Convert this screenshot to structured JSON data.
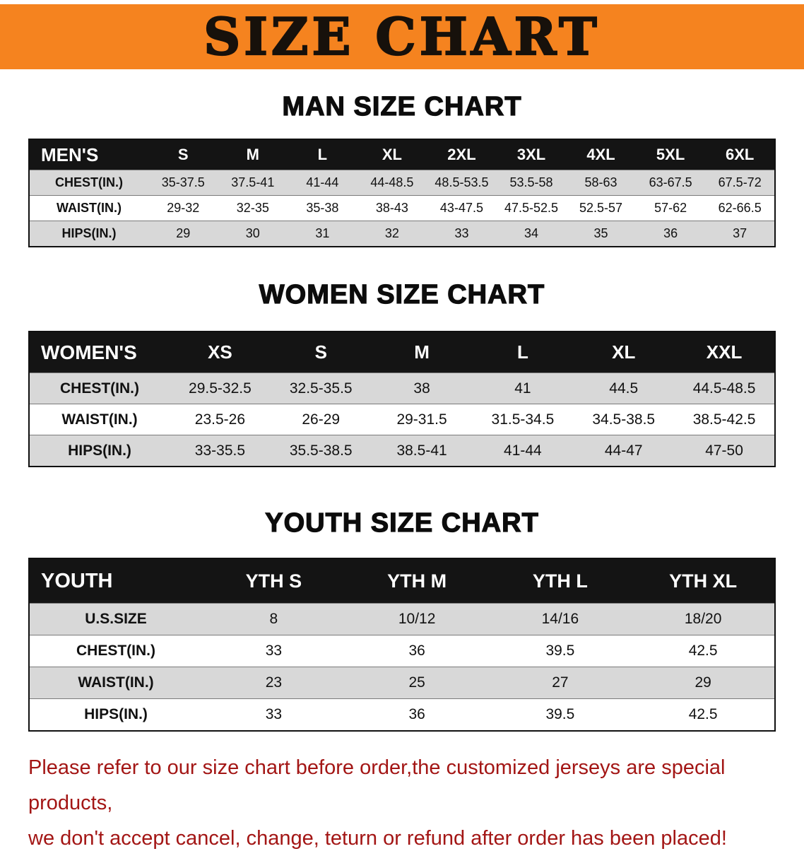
{
  "banner": {
    "title": "SIZE CHART",
    "bg_color": "#F5831F",
    "text_color": "#17110B"
  },
  "sections": [
    {
      "heading": "MAN SIZE CHART",
      "table": {
        "header": [
          "MEN'S",
          "S",
          "M",
          "L",
          "XL",
          "2XL",
          "3XL",
          "4XL",
          "5XL",
          "6XL"
        ],
        "rows": [
          [
            "CHEST(IN.)",
            "35-37.5",
            "37.5-41",
            "41-44",
            "44-48.5",
            "48.5-53.5",
            "53.5-58",
            "58-63",
            "63-67.5",
            "67.5-72"
          ],
          [
            "WAIST(IN.)",
            "29-32",
            "32-35",
            "35-38",
            "38-43",
            "43-47.5",
            "47.5-52.5",
            "52.5-57",
            "57-62",
            "62-66.5"
          ],
          [
            "HIPS(IN.)",
            "29",
            "30",
            "31",
            "32",
            "33",
            "34",
            "35",
            "36",
            "37"
          ]
        ]
      }
    },
    {
      "heading": "WOMEN SIZE CHART",
      "table": {
        "header": [
          "WOMEN'S",
          "XS",
          "S",
          "M",
          "L",
          "XL",
          "XXL"
        ],
        "rows": [
          [
            "CHEST(IN.)",
            "29.5-32.5",
            "32.5-35.5",
            "38",
            "41",
            "44.5",
            "44.5-48.5"
          ],
          [
            "WAIST(IN.)",
            "23.5-26",
            "26-29",
            "29-31.5",
            "31.5-34.5",
            "34.5-38.5",
            "38.5-42.5"
          ],
          [
            "HIPS(IN.)",
            "33-35.5",
            "35.5-38.5",
            "38.5-41",
            "41-44",
            "44-47",
            "47-50"
          ]
        ]
      }
    },
    {
      "heading": "YOUTH SIZE CHART",
      "table": {
        "header": [
          "YOUTH",
          "YTH S",
          "YTH M",
          "YTH L",
          "YTH XL"
        ],
        "rows": [
          [
            "U.S.SIZE",
            "8",
            "10/12",
            "14/16",
            "18/20"
          ],
          [
            "CHEST(IN.)",
            "33",
            "36",
            "39.5",
            "42.5"
          ],
          [
            "WAIST(IN.)",
            "23",
            "25",
            "27",
            "29"
          ],
          [
            "HIPS(IN.)",
            "33",
            "36",
            "39.5",
            "42.5"
          ]
        ]
      }
    }
  ],
  "footer": {
    "line1": "Please refer to our size chart before order,the customized jerseys are special products,",
    "line2": "we don't accept cancel, change, teturn or refund after order has been placed!"
  },
  "colors": {
    "row_stripe": "#D8D8D8",
    "table_header_bg": "#141414",
    "disclaimer_text": "#A31615"
  }
}
